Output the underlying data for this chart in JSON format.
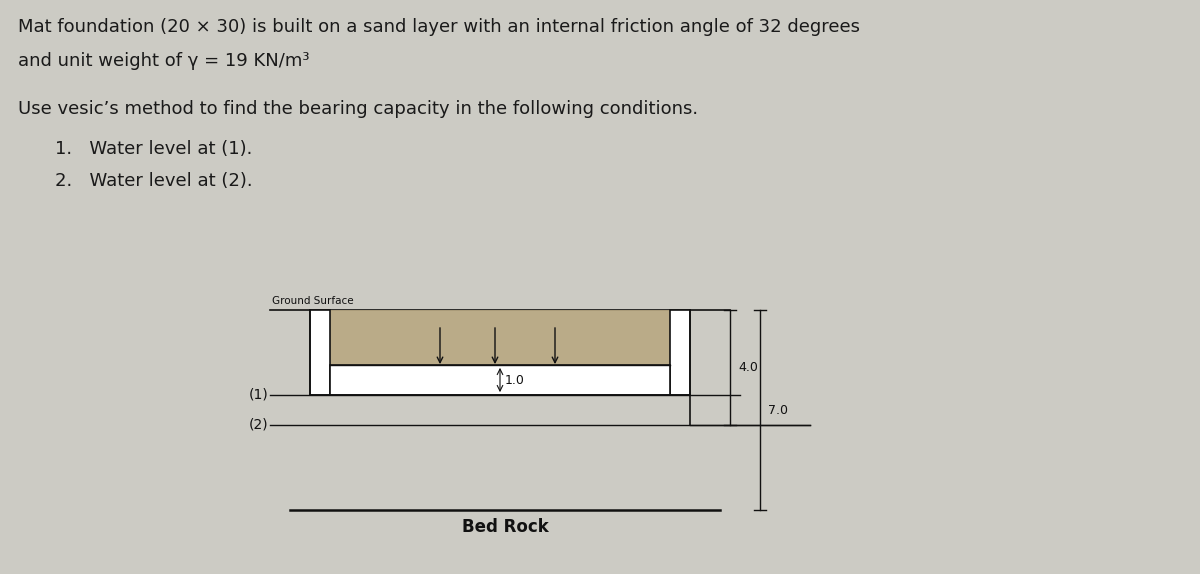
{
  "bg_color": "#cccbc4",
  "title_line1": "Mat foundation (20 × 30) is built on a sand layer with an internal friction angle of 32 degrees",
  "title_line2": "and unit weight of γ = 19 KN/m³",
  "subtitle": "Use vesic’s method to find the bearing capacity in the following conditions.",
  "item1": "1.   Water level at (1).",
  "item2": "2.   Water level at (2).",
  "ground_surface_label": "Ground Surface",
  "label_1": "(1)",
  "label_2": "(2)",
  "bed_rock_label": "Bed Rock",
  "dim_40": "4.0",
  "dim_70": "7.0",
  "dim_10": "1.0",
  "fill_color": "#b8a882",
  "line_color": "#111111",
  "text_color": "#1a1a1a"
}
